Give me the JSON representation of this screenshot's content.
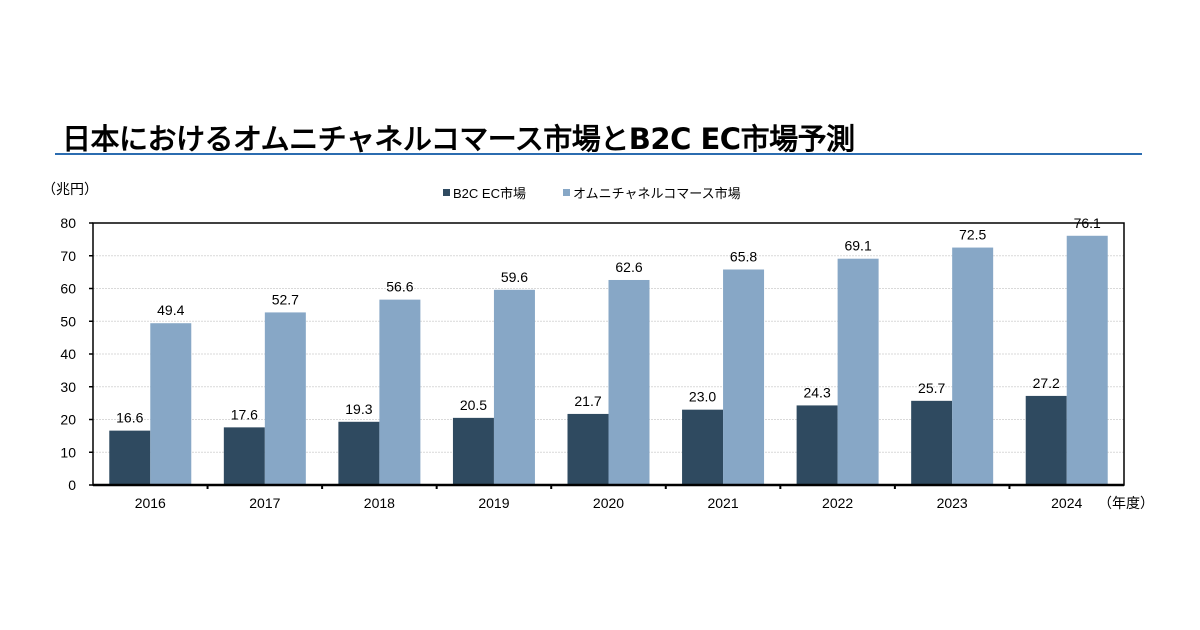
{
  "chart_data": {
    "type": "bar",
    "title": "日本におけるオムニチャネルコマース市場とB2C EC市場予測",
    "ylabel": "（兆円）",
    "xlabel": "（年度）",
    "ylim": [
      0,
      80
    ],
    "yticks": [
      "0",
      "10",
      "20",
      "30",
      "40",
      "50",
      "60",
      "70",
      "80"
    ],
    "grid": true,
    "legend_position": "top-center",
    "categories": [
      "2016",
      "2017",
      "2018",
      "2019",
      "2020",
      "2021",
      "2022",
      "2023",
      "2024"
    ],
    "series": [
      {
        "name": "B2C EC市場",
        "color": "#2f4a60",
        "values": [
          16.6,
          17.6,
          19.3,
          20.5,
          21.7,
          23.0,
          24.3,
          25.7,
          27.2
        ],
        "labels": [
          "16.6",
          "17.6",
          "19.3",
          "20.5",
          "21.7",
          "23.0",
          "24.3",
          "25.7",
          "27.2"
        ]
      },
      {
        "name": "オムニチャネルコマース市場",
        "color": "#87a7c6",
        "values": [
          49.4,
          52.7,
          56.6,
          59.6,
          62.6,
          65.8,
          69.1,
          72.5,
          76.1
        ],
        "labels": [
          "49.4",
          "52.7",
          "56.6",
          "59.6",
          "62.6",
          "65.8",
          "69.1",
          "72.5",
          "76.1"
        ]
      }
    ]
  }
}
